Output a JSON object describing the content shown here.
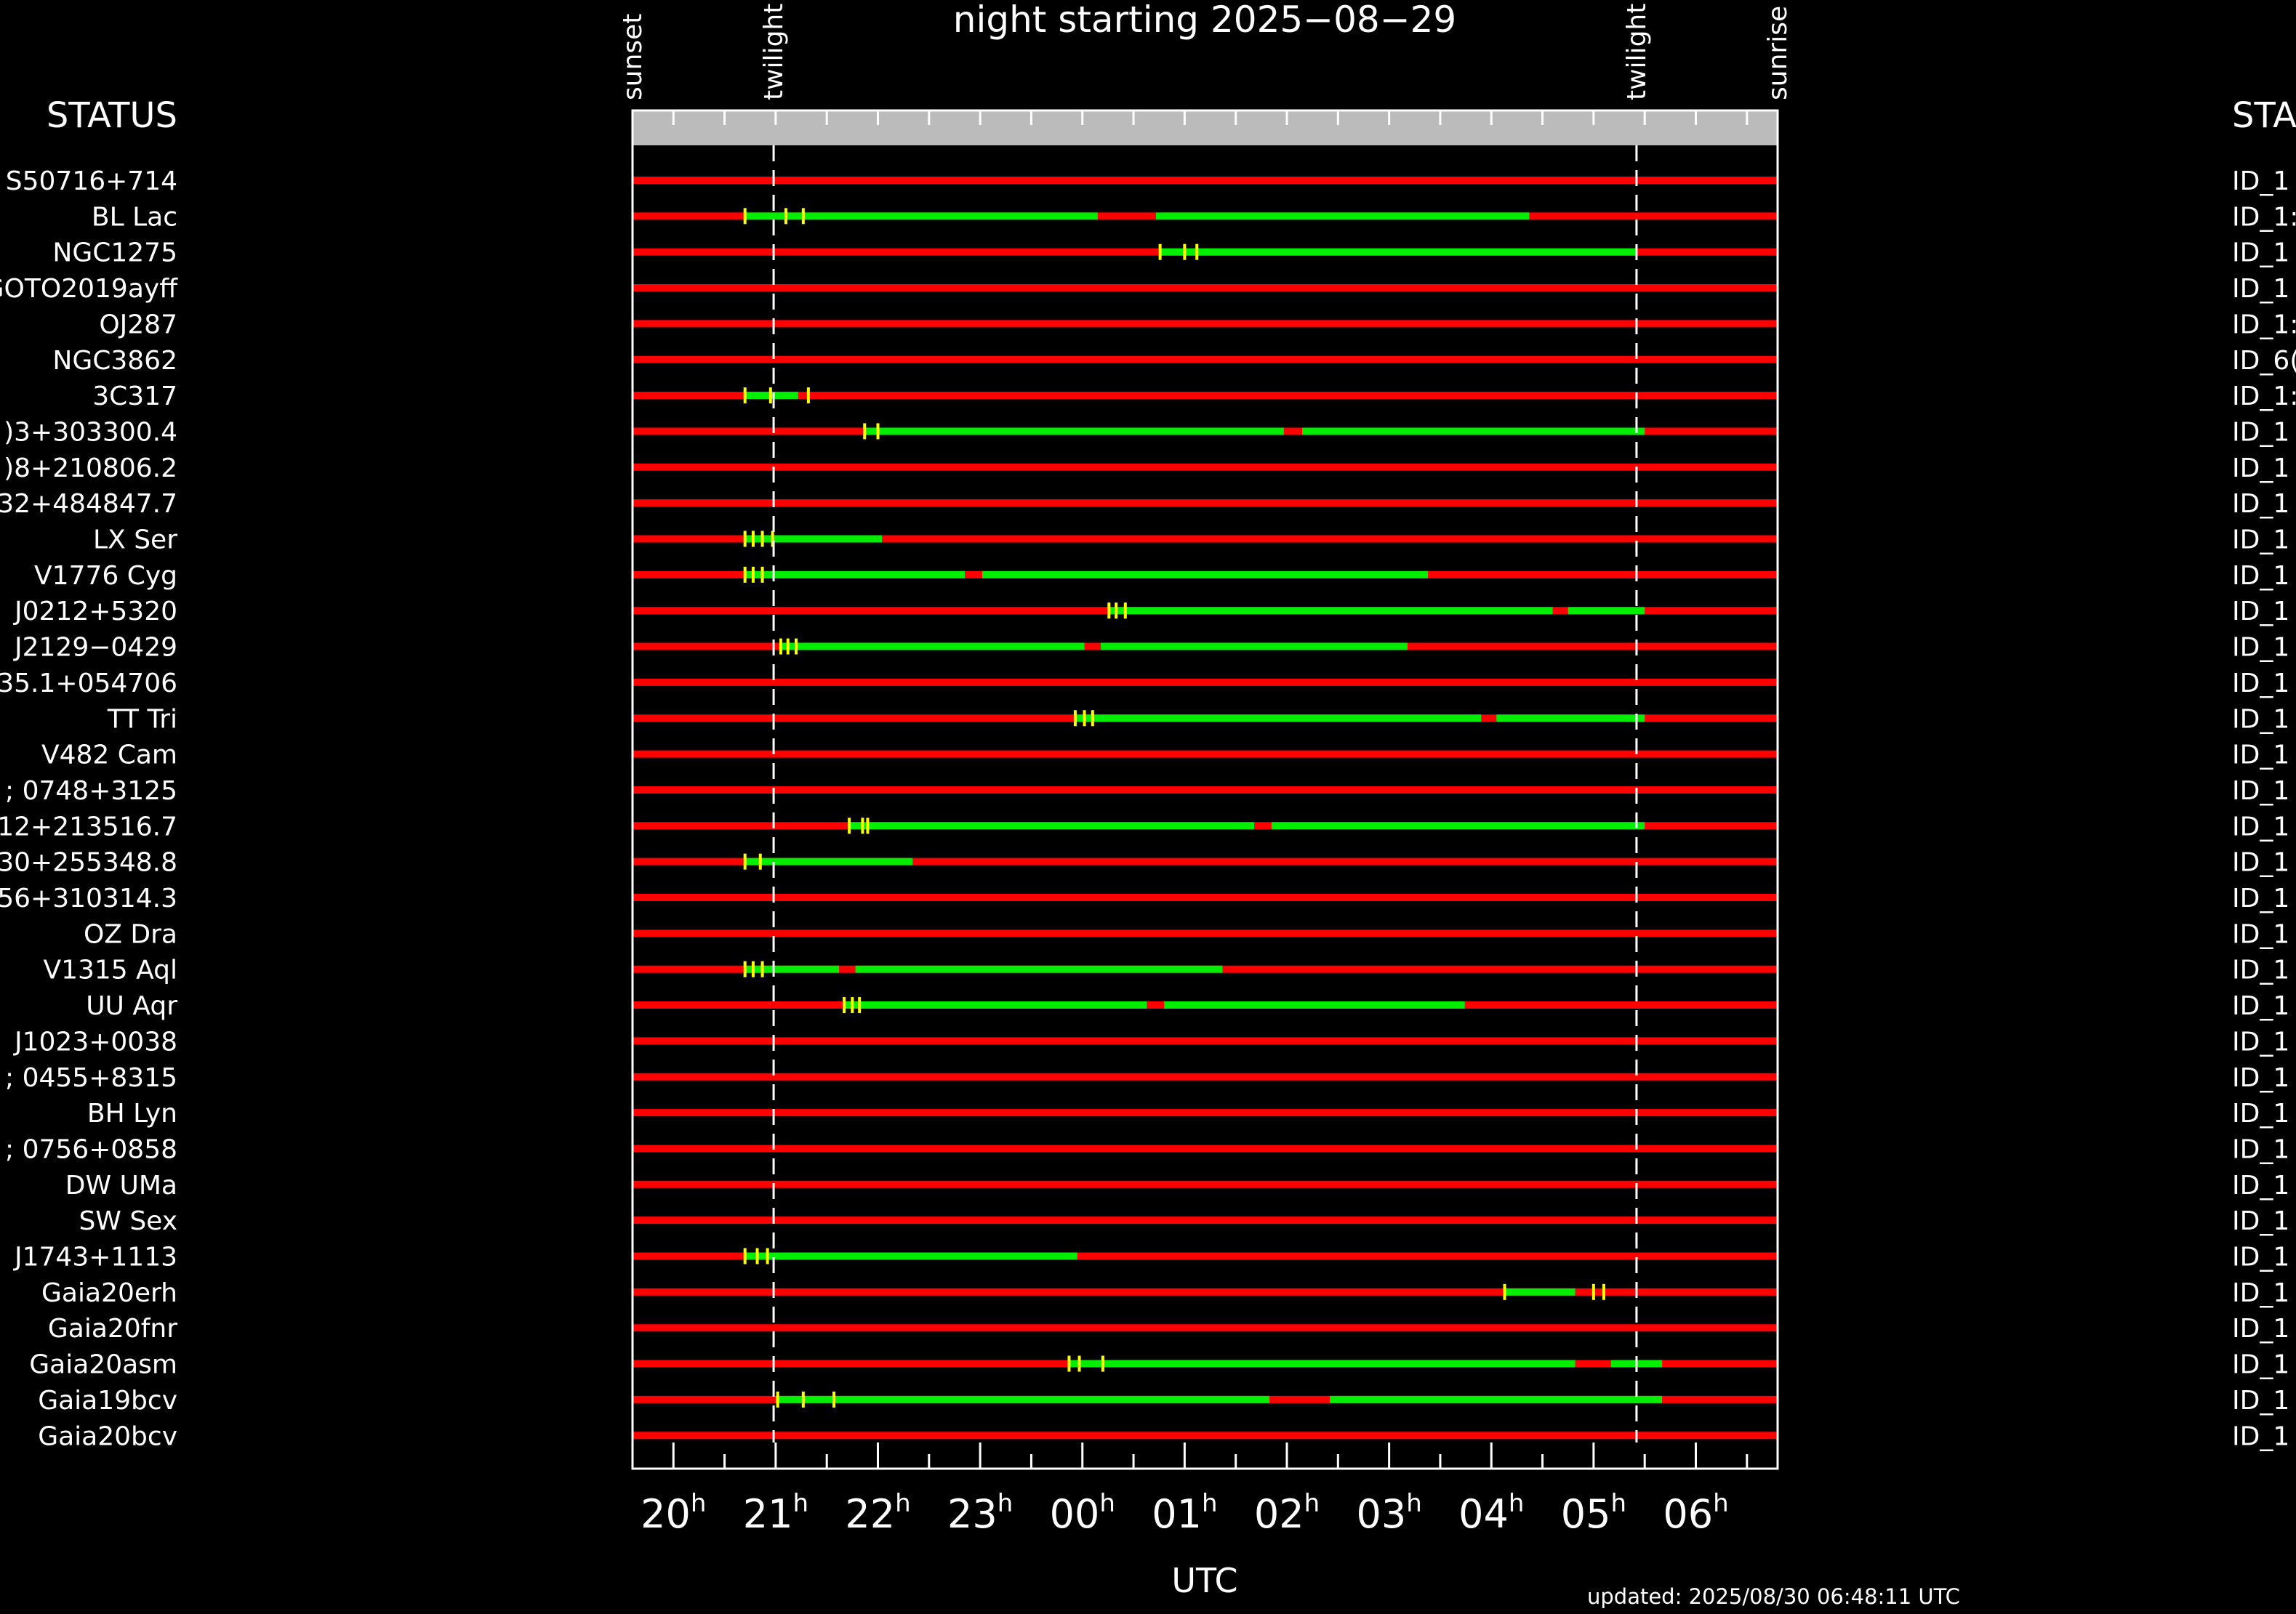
{
  "title": "night starting 2025−08−29",
  "left_header": "STATUS",
  "right_header": "STA",
  "xlabel": "UTC",
  "updated": "updated: 2025/08/30 06:48:11 UTC",
  "colors": {
    "background": "#000000",
    "unobservable": "#ff0000",
    "observable": "#00ee00",
    "marker": "#ffff00",
    "header_band": "#bbbbbb",
    "frame": "#ffffff"
  },
  "chart_data": {
    "type": "gantt",
    "title": "night starting 2025−08−29",
    "xlabel": "UTC",
    "x_range": [
      19.6,
      30.8
    ],
    "tick_labels": [
      {
        "hour": 20,
        "label": "20"
      },
      {
        "hour": 21,
        "label": "21"
      },
      {
        "hour": 22,
        "label": "22"
      },
      {
        "hour": 23,
        "label": "23"
      },
      {
        "hour": 24,
        "label": "00"
      },
      {
        "hour": 25,
        "label": "01"
      },
      {
        "hour": 26,
        "label": "02"
      },
      {
        "hour": 27,
        "label": "03"
      },
      {
        "hour": 28,
        "label": "04"
      },
      {
        "hour": 29,
        "label": "05"
      },
      {
        "hour": 30,
        "label": "06"
      }
    ],
    "hour_suffix": "h",
    "events": [
      {
        "label": "sunset",
        "hour": 19.6,
        "line": false
      },
      {
        "label": "twilight",
        "hour": 20.98,
        "line": true
      },
      {
        "label": "twilight",
        "hour": 29.42,
        "line": true
      },
      {
        "label": "sunrise",
        "hour": 30.8,
        "line": false
      }
    ],
    "rows": [
      {
        "name": "S50716+714",
        "id": "ID_1",
        "green": [],
        "marks": []
      },
      {
        "name": "BL Lac",
        "id": "ID_1:",
        "green": [
          [
            20.7,
            24.15
          ],
          [
            24.72,
            28.37
          ]
        ],
        "marks": [
          20.7,
          21.1,
          21.27
        ]
      },
      {
        "name": "NGC1275",
        "id": "ID_1",
        "green": [
          [
            24.76,
            29.42
          ]
        ],
        "marks": [
          24.76,
          25.0,
          25.12
        ]
      },
      {
        "name": "GOTO2019ayff",
        "id": "ID_1",
        "green": [],
        "marks": []
      },
      {
        "name": "OJ287",
        "id": "ID_1:",
        "green": [],
        "marks": []
      },
      {
        "name": "NGC3862",
        "id": "ID_6(",
        "green": [],
        "marks": []
      },
      {
        "name": "3C317",
        "id": "ID_1:",
        "green": [
          [
            20.7,
            21.22
          ]
        ],
        "marks": [
          20.7,
          20.95,
          21.32
        ]
      },
      {
        "name": ")3+303300.4",
        "id": "ID_1",
        "green": [
          [
            21.87,
            25.97
          ],
          [
            26.15,
            29.5
          ]
        ],
        "marks": [
          21.87,
          22.0
        ]
      },
      {
        "name": ")8+210806.2",
        "id": "ID_1",
        "green": [],
        "marks": []
      },
      {
        "name": "32+484847.7",
        "id": "ID_1",
        "green": [],
        "marks": []
      },
      {
        "name": "LX Ser",
        "id": "ID_1",
        "green": [
          [
            20.7,
            22.04
          ]
        ],
        "marks": [
          20.7,
          20.78,
          20.87,
          20.97
        ]
      },
      {
        "name": "V1776 Cyg",
        "id": "ID_1",
        "green": [
          [
            20.7,
            22.85
          ],
          [
            23.02,
            27.38
          ]
        ],
        "marks": [
          20.7,
          20.78,
          20.87
        ]
      },
      {
        "name": "J0212+5320",
        "id": "ID_1",
        "green": [
          [
            24.26,
            28.6
          ],
          [
            28.75,
            29.5
          ]
        ],
        "marks": [
          24.26,
          24.33,
          24.42
        ]
      },
      {
        "name": "J2129−0429",
        "id": "ID_1",
        "green": [
          [
            21.05,
            24.02
          ],
          [
            24.18,
            27.18
          ]
        ],
        "marks": [
          21.05,
          21.12,
          21.2
        ]
      },
      {
        "name": "35.1+054706",
        "id": "ID_1",
        "green": [],
        "marks": []
      },
      {
        "name": "TT Tri",
        "id": "ID_1",
        "green": [
          [
            23.93,
            27.9
          ],
          [
            28.05,
            29.5
          ]
        ],
        "marks": [
          23.93,
          24.02,
          24.1
        ]
      },
      {
        "name": "V482 Cam",
        "id": "ID_1",
        "green": [],
        "marks": []
      },
      {
        "name": "; 0748+3125",
        "id": "ID_1",
        "green": [],
        "marks": []
      },
      {
        "name": "12+213516.7",
        "id": "ID_1",
        "green": [
          [
            21.72,
            25.68
          ],
          [
            25.85,
            29.5
          ]
        ],
        "marks": [
          21.72,
          21.85,
          21.9
        ]
      },
      {
        "name": "30+255348.8",
        "id": "ID_1",
        "green": [
          [
            20.7,
            22.34
          ]
        ],
        "marks": [
          20.7,
          20.85
        ]
      },
      {
        "name": "56+310314.3",
        "id": "ID_1",
        "green": [],
        "marks": []
      },
      {
        "name": "OZ Dra",
        "id": "ID_1",
        "green": [],
        "marks": []
      },
      {
        "name": "V1315 Aql",
        "id": "ID_1",
        "green": [
          [
            20.7,
            21.62
          ],
          [
            21.78,
            25.37
          ]
        ],
        "marks": [
          20.7,
          20.78,
          20.87
        ]
      },
      {
        "name": "UU Aqr",
        "id": "ID_1",
        "green": [
          [
            21.67,
            24.63
          ],
          [
            24.8,
            27.74
          ]
        ],
        "marks": [
          21.67,
          21.75,
          21.82
        ]
      },
      {
        "name": "J1023+0038",
        "id": "ID_1",
        "green": [],
        "marks": []
      },
      {
        "name": "; 0455+8315",
        "id": "ID_1",
        "green": [],
        "marks": []
      },
      {
        "name": "BH Lyn",
        "id": "ID_1",
        "green": [],
        "marks": []
      },
      {
        "name": "; 0756+0858",
        "id": "ID_1",
        "green": [],
        "marks": []
      },
      {
        "name": "DW UMa",
        "id": "ID_1",
        "green": [],
        "marks": []
      },
      {
        "name": "SW Sex",
        "id": "ID_1",
        "green": [],
        "marks": []
      },
      {
        "name": "J1743+1113",
        "id": "ID_1",
        "green": [
          [
            20.7,
            23.95
          ]
        ],
        "marks": [
          20.7,
          20.82,
          20.92
        ]
      },
      {
        "name": "Gaia20erh",
        "id": "ID_1",
        "green": [
          [
            28.13,
            28.82
          ]
        ],
        "marks": [
          28.13,
          29.0,
          29.1
        ]
      },
      {
        "name": "Gaia20fnr",
        "id": "ID_1",
        "green": [],
        "marks": []
      },
      {
        "name": "Gaia20asm",
        "id": "ID_1",
        "green": [
          [
            23.87,
            28.82
          ],
          [
            29.17,
            29.67
          ]
        ],
        "marks": [
          23.87,
          23.97,
          24.2
        ]
      },
      {
        "name": "Gaia19bcv",
        "id": "ID_1",
        "green": [
          [
            21.0,
            25.83
          ],
          [
            26.42,
            29.67
          ]
        ],
        "marks": [
          21.02,
          21.27,
          21.57
        ]
      },
      {
        "name": "Gaia20bcv",
        "id": "ID_1",
        "green": [],
        "marks": []
      }
    ]
  }
}
